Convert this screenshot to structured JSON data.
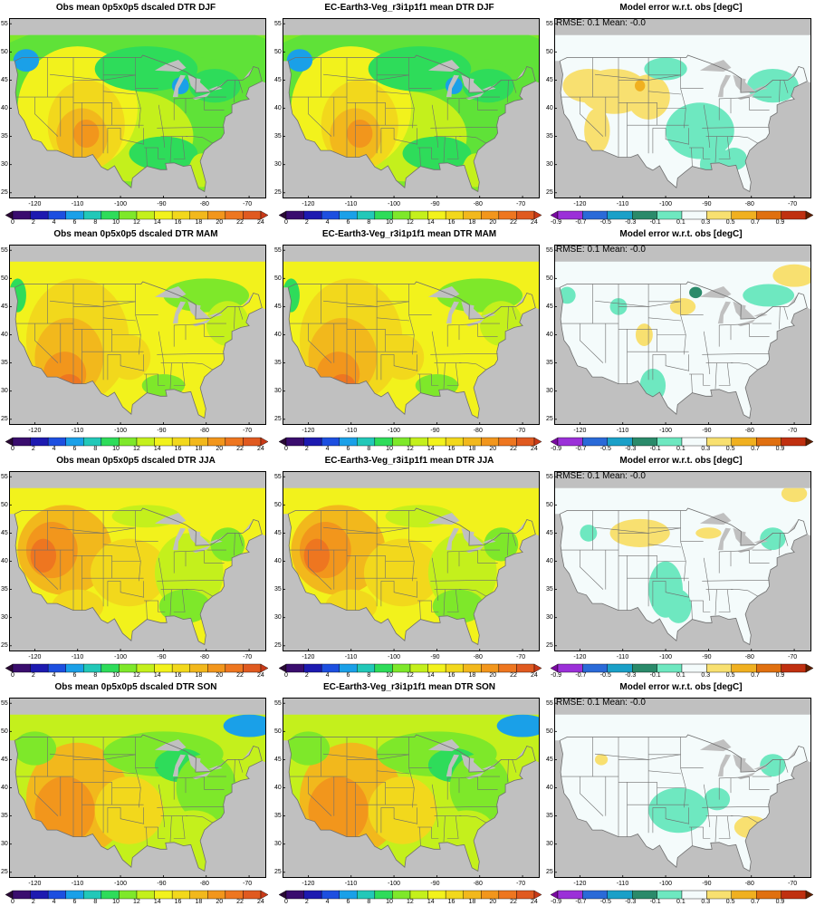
{
  "rows": [
    {
      "season": "DJF",
      "panels": [
        {
          "kind": "field",
          "title": "Obs mean 0p5x0p5 dscaled DTR DJF"
        },
        {
          "kind": "field",
          "title": "EC-Earth3-Veg_r3i1p1f1 mean DTR DJF"
        },
        {
          "kind": "error",
          "title": "Model error w.r.t. obs [degC]",
          "stats": "RMSE: 0.1   Mean: -0.0"
        }
      ]
    },
    {
      "season": "MAM",
      "panels": [
        {
          "kind": "field",
          "title": "Obs mean 0p5x0p5 dscaled DTR MAM"
        },
        {
          "kind": "field",
          "title": "EC-Earth3-Veg_r3i1p1f1 mean DTR MAM"
        },
        {
          "kind": "error",
          "title": "Model error w.r.t. obs [degC]",
          "stats": "RMSE: 0.1   Mean: -0.0"
        }
      ]
    },
    {
      "season": "JJA",
      "panels": [
        {
          "kind": "field",
          "title": "Obs mean 0p5x0p5 dscaled DTR JJA"
        },
        {
          "kind": "field",
          "title": "EC-Earth3-Veg_r3i1p1f1 mean DTR JJA"
        },
        {
          "kind": "error",
          "title": "Model error w.r.t. obs [degC]",
          "stats": "RMSE: 0.1   Mean: -0.0"
        }
      ]
    },
    {
      "season": "SON",
      "panels": [
        {
          "kind": "field",
          "title": "Obs mean 0p5x0p5 dscaled DTR SON"
        },
        {
          "kind": "field",
          "title": "EC-Earth3-Veg_r3i1p1f1 mean DTR SON"
        },
        {
          "kind": "error",
          "title": "Model error w.r.t. obs [degC]",
          "stats": "RMSE: 0.1   Mean: -0.0"
        }
      ]
    }
  ],
  "axes": {
    "lat_ticks": [
      "25",
      "30",
      "35",
      "40",
      "45",
      "50",
      "55"
    ],
    "lat_values": [
      25,
      30,
      35,
      40,
      45,
      50,
      55
    ],
    "lon_ticks": [
      "-120",
      "-110",
      "-100",
      "-90",
      "-80",
      "-70"
    ],
    "lon_values": [
      -120,
      -110,
      -100,
      -90,
      -80,
      -70
    ],
    "lon_range": [
      -126,
      -66
    ],
    "lat_range": [
      24,
      56
    ]
  },
  "colorbars": {
    "field": {
      "labels": [
        "0",
        "2",
        "4",
        "6",
        "8",
        "10",
        "12",
        "14",
        "16",
        "18",
        "20",
        "22",
        "24"
      ],
      "colors": [
        "#2a0a35",
        "#3a0d6e",
        "#1d1ab0",
        "#1d4fe0",
        "#1aa0e8",
        "#22c8b8",
        "#2edc5a",
        "#7ee82a",
        "#c4f01c",
        "#f2f21c",
        "#f2d81c",
        "#f2b81c",
        "#f2961c",
        "#ee7620",
        "#e05a20",
        "#c83a18"
      ]
    },
    "error": {
      "labels": [
        "-0.9",
        "-0.7",
        "-0.5",
        "-0.3",
        "-0.1",
        "0.1",
        "0.3",
        "0.5",
        "0.7",
        "0.9"
      ],
      "colors": [
        "#7a0aa0",
        "#9b30d8",
        "#2a6ad8",
        "#1aa0c8",
        "#2a8a6a",
        "#6ee8c0",
        "#f4fbfb",
        "#f8e070",
        "#f0b020",
        "#e07010",
        "#c03010",
        "#602000"
      ]
    }
  },
  "land_colors": {
    "ocean": "#c0c0c0",
    "border": "#6e6e6e"
  }
}
